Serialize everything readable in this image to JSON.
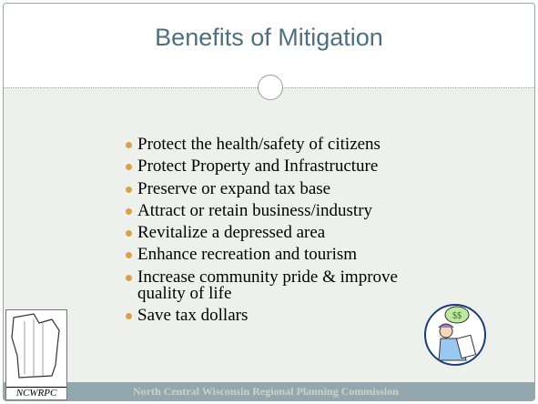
{
  "header": {
    "title": "Benefits of Mitigation"
  },
  "bullets": [
    "Protect the health/safety of citizens",
    "Protect Property and Infrastructure",
    "Preserve or expand tax base",
    "Attract or retain business/industry",
    "Revitalize a depressed area",
    "Enhance recreation and tourism",
    "Increase community pride & improve quality of life",
    "Save tax dollars"
  ],
  "logo": {
    "text": "NCWRPC"
  },
  "footer": {
    "text": "North Central Wisconsin Regional Planning Commission"
  }
}
